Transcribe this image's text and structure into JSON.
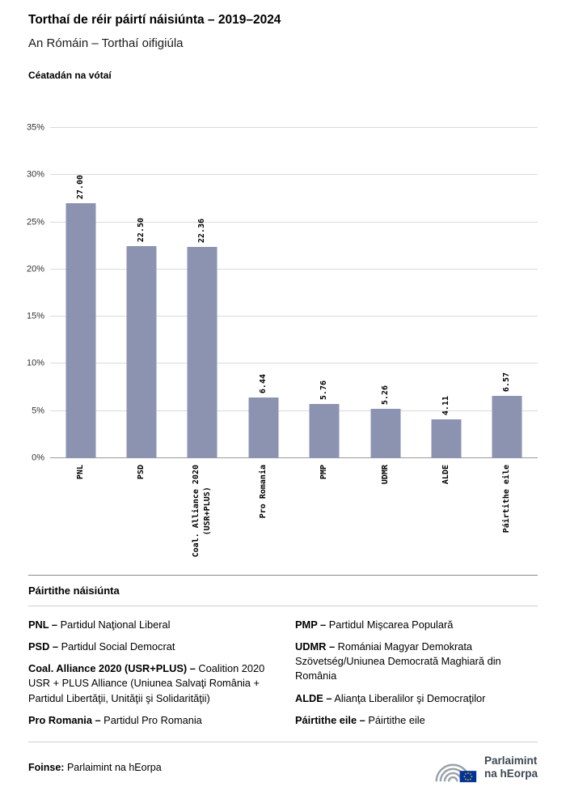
{
  "header": {
    "title": "Torthaí de réir páirtí náisiúnta – 2019–2024",
    "subtitle": "An Rómáin – Torthaí oifigiúla"
  },
  "chart_data": {
    "type": "bar",
    "title": "Céatadán na vótaí",
    "categories": [
      "PNL",
      "PSD",
      "Coal. Alliance 2020\n(USR+PLUS)",
      "Pro Romania",
      "PMP",
      "UDMR",
      "ALDE",
      "Páirtithe eile"
    ],
    "values": [
      27.0,
      22.5,
      22.36,
      6.44,
      5.76,
      5.26,
      4.11,
      6.57
    ],
    "value_labels": [
      "27.00",
      "22.50",
      "22.36",
      "6.44",
      "5.76",
      "5.26",
      "4.11",
      "6.57"
    ],
    "ylabel": "Céatadán na vótaí",
    "xlabel": "",
    "ylim": [
      0,
      35
    ],
    "ytick_step": 5,
    "ytick_suffix": "%",
    "grid": true,
    "legend_position": "none",
    "bar_color": "#8c93b1"
  },
  "legend": {
    "heading": "Páirtithe náisiúnta",
    "columns": [
      [
        {
          "term": "PNL –",
          "definition": "Partidul Naţional Liberal"
        },
        {
          "term": "PSD –",
          "definition": "Partidul Social Democrat"
        },
        {
          "term": "Coal. Alliance 2020 (USR+PLUS) –",
          "definition": "Coalition 2020 USR + PLUS Alliance (Uniunea Salvaţi România + Partidul Libertăţii, Unităţii şi Solidarităţii)"
        },
        {
          "term": "Pro Romania –",
          "definition": "Partidul Pro Romania"
        }
      ],
      [
        {
          "term": "PMP –",
          "definition": "Partidul Mişcarea Populară"
        },
        {
          "term": "UDMR –",
          "definition": "Romániai Magyar Demokrata Szövetség/Uniunea Democrată Maghiară din România"
        },
        {
          "term": "ALDE –",
          "definition": "Alianţa Liberalilor şi Democraţilor"
        },
        {
          "term": "Páirtithe eile –",
          "definition": "Páirtithe eile"
        }
      ]
    ]
  },
  "footer": {
    "source_label": "Foinse:",
    "source_text": "Parlaimint na hEorpa",
    "logo_line1": "Parlaimint",
    "logo_line2": "na hEorpa"
  }
}
